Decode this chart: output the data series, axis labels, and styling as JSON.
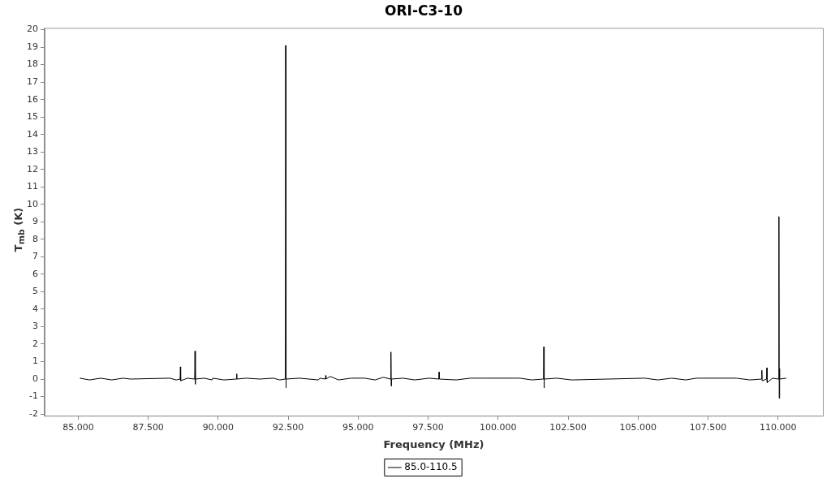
{
  "chart_data": {
    "type": "line",
    "title": "ORI-C3-10",
    "xlabel": "Frequency (MHz)",
    "ylabel": "T$_{mb}$ (K)",
    "xlim": [
      83.8,
      111.6
    ],
    "xticks": [
      {
        "value": 85,
        "label": "85.000"
      },
      {
        "value": 87.5,
        "label": "87.500"
      },
      {
        "value": 90,
        "label": "90.000"
      },
      {
        "value": 92.5,
        "label": "92.500"
      },
      {
        "value": 95,
        "label": "95.000"
      },
      {
        "value": 97.5,
        "label": "97.500"
      },
      {
        "value": 100,
        "label": "100.000"
      },
      {
        "value": 102.5,
        "label": "102.500"
      },
      {
        "value": 105,
        "label": "105.000"
      },
      {
        "value": 107.5,
        "label": "107.500"
      },
      {
        "value": 110,
        "label": "110.000"
      }
    ],
    "ylim": [
      -2.1,
      20.1
    ],
    "yticks": [
      -2,
      -1,
      0,
      1,
      2,
      3,
      4,
      5,
      6,
      7,
      8,
      9,
      10,
      11,
      12,
      13,
      14,
      15,
      16,
      17,
      18,
      19,
      20
    ],
    "grid": false,
    "legend": "bottom",
    "marker": "none",
    "line_style": "solid",
    "series": [
      {
        "name": "85.0-110.5",
        "color": "#000000",
        "x": [
          85.06,
          85.4,
          85.8,
          86.2,
          86.6,
          86.87,
          88.27,
          88.5,
          88.64,
          88.65,
          88.66,
          88.9,
          89.16,
          89.17,
          89.18,
          89.19,
          89.5,
          89.78,
          89.81,
          90.2,
          90.65,
          90.66,
          90.67,
          91.0,
          91.48,
          91.97,
          92.2,
          92.4,
          92.41,
          92.42,
          92.43,
          92.9,
          93.58,
          93.63,
          93.83,
          93.84,
          93.85,
          94.0,
          94.3,
          94.74,
          95.24,
          95.6,
          95.9,
          96.16,
          96.17,
          96.18,
          96.19,
          96.6,
          97.02,
          97.54,
          97.88,
          97.89,
          97.9,
          98.5,
          99.0,
          99.35,
          100.78,
          101.2,
          101.62,
          101.63,
          101.64,
          101.65,
          102.1,
          102.62,
          105.24,
          105.7,
          106.2,
          106.7,
          107.08,
          108.51,
          109.0,
          109.41,
          109.42,
          109.43,
          109.59,
          109.6,
          109.61,
          109.8,
          110.02,
          110.03,
          110.04,
          110.05,
          110.06,
          110.29
        ],
        "values": [
          0.05,
          -0.05,
          0.05,
          -0.05,
          0.05,
          0,
          0.05,
          -0.05,
          0,
          0.7,
          -0.1,
          0.05,
          0,
          1.6,
          -0.3,
          0,
          0.05,
          -0.05,
          0.05,
          -0.05,
          0,
          0.3,
          0,
          0.05,
          0,
          0.05,
          -0.05,
          0,
          19.1,
          -0.5,
          0,
          0.05,
          -0.05,
          0.05,
          0,
          0.2,
          0,
          0.15,
          -0.05,
          0.05,
          0.05,
          -0.05,
          0.1,
          0,
          1.55,
          -0.4,
          0,
          0.05,
          -0.05,
          0.05,
          0,
          0.4,
          0,
          -0.05,
          0.05,
          0.05,
          0.05,
          -0.05,
          0,
          1.85,
          -0.5,
          0,
          0.05,
          -0.05,
          0.05,
          -0.05,
          0.05,
          -0.05,
          0.05,
          0.05,
          -0.05,
          0,
          0.5,
          -0.1,
          0,
          0.65,
          -0.2,
          0.05,
          0,
          9.3,
          -1.1,
          0.6,
          0,
          0.05
        ]
      }
    ]
  }
}
